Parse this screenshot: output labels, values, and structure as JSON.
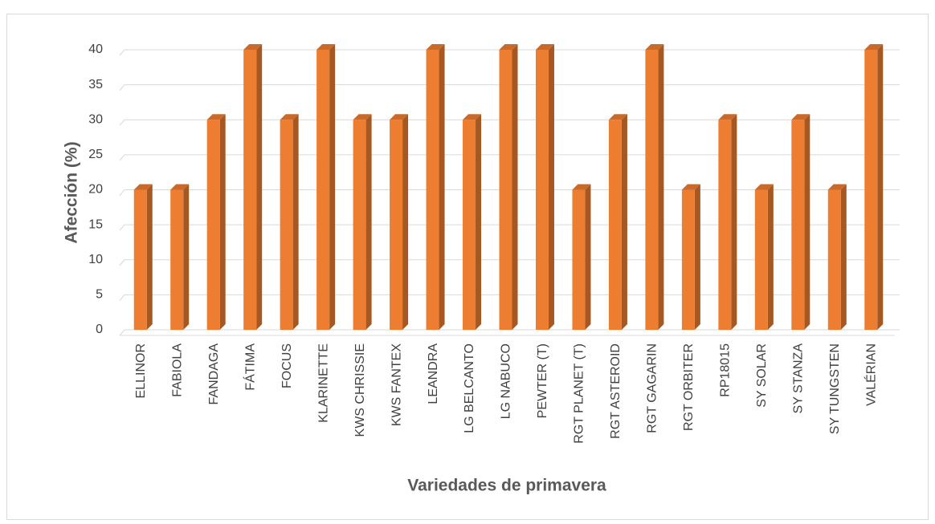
{
  "chart_data": {
    "type": "bar3d",
    "categories": [
      "ELLINOR",
      "FABIOLA",
      "FANDAGA",
      "FÁTIMA",
      "FOCUS",
      "KLARINETTE",
      "KWS CHRISSIE",
      "KWS FANTEX",
      "LEANDRA",
      "LG BELCANTO",
      "LG NABUCO",
      "PEWTER (T)",
      "RGT PLANET (T)",
      "RGT ASTEROID",
      "RGT GAGARIN",
      "RGT ORBITER",
      "RP18015",
      "SY SOLAR",
      "SY STANZA",
      "SY TUNGSTEN",
      "VALÉRIAN"
    ],
    "values": [
      20,
      20,
      30,
      40,
      30,
      40,
      30,
      30,
      40,
      30,
      40,
      40,
      20,
      30,
      40,
      20,
      30,
      20,
      30,
      20,
      40
    ],
    "color": "#ed7d31",
    "ylim": [
      0,
      40
    ],
    "yticks": [
      0,
      5,
      10,
      15,
      20,
      25,
      30,
      35,
      40
    ],
    "grid": true,
    "xlabel": "Variedades de primavera",
    "ylabel": "Afección (%)"
  }
}
